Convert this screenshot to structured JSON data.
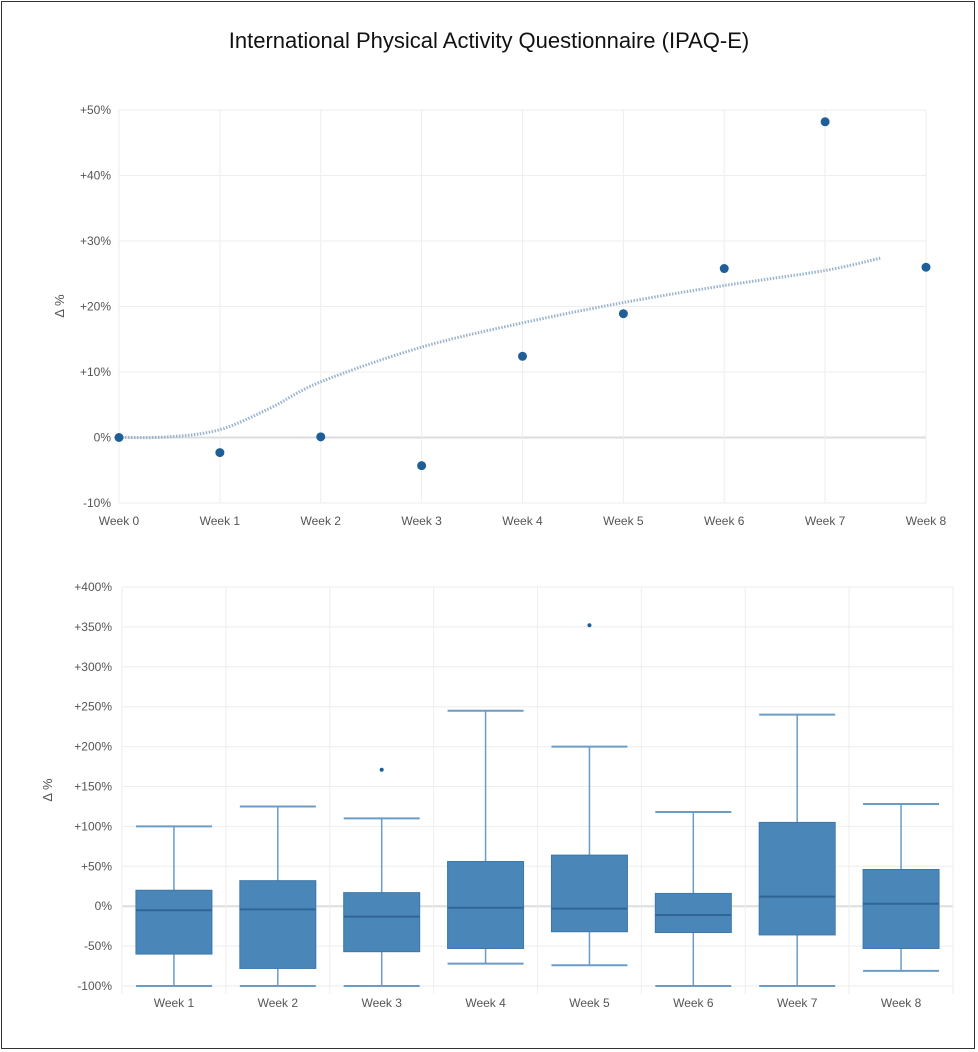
{
  "title": "International Physical Activity Questionnaire (IPAQ-E)",
  "colors": {
    "point": "#1f5f99",
    "box": "#4a86b8",
    "whisker": "#6a9cc6",
    "trend": "#9bb4cc",
    "grid": "#eeeeee"
  },
  "chart_data": [
    {
      "type": "scatter",
      "ylabel": "Δ %",
      "categories": [
        "Week 0",
        "Week 1",
        "Week 2",
        "Week 3",
        "Week 4",
        "Week 5",
        "Week 6",
        "Week 7",
        "Week 8"
      ],
      "values": [
        0,
        -2.3,
        0.1,
        -4.3,
        12.4,
        18.9,
        25.8,
        48.2,
        26.0
      ],
      "trendline": {
        "x": [
          0,
          0.5,
          1,
          1.5,
          2,
          3,
          4,
          5,
          6,
          7,
          7.55
        ],
        "y": [
          0,
          0.1,
          1.2,
          4.5,
          8.5,
          13.8,
          17.5,
          20.6,
          23.2,
          25.5,
          27.4
        ],
        "style": "dotted"
      },
      "yticks": [
        "+50%",
        "+40%",
        "+30%",
        "+20%",
        "+10%",
        "0%",
        "-10%"
      ],
      "ytick_values": [
        50,
        40,
        30,
        20,
        10,
        0,
        -10
      ],
      "ylim": [
        -10,
        50
      ],
      "grid": true
    },
    {
      "type": "box",
      "ylabel": "Δ %",
      "categories": [
        "Week 1",
        "Week 2",
        "Week 3",
        "Week 4",
        "Week 5",
        "Week 6",
        "Week 7",
        "Week 8"
      ],
      "boxes": [
        {
          "min": -100,
          "q1": -60,
          "median": -5,
          "q3": 20,
          "max": 100,
          "outliers": []
        },
        {
          "min": -100,
          "q1": -78,
          "median": -4,
          "q3": 32,
          "max": 125,
          "outliers": []
        },
        {
          "min": -100,
          "q1": -57,
          "median": -13,
          "q3": 17,
          "max": 110,
          "outliers": [
            171
          ]
        },
        {
          "min": -72,
          "q1": -53,
          "median": -2,
          "q3": 56,
          "max": 245,
          "outliers": []
        },
        {
          "min": -74,
          "q1": -32,
          "median": -3,
          "q3": 64,
          "max": 200,
          "outliers": [
            352
          ]
        },
        {
          "min": -100,
          "q1": -33,
          "median": -11,
          "q3": 16,
          "max": 118,
          "outliers": []
        },
        {
          "min": -100,
          "q1": -36,
          "median": 12,
          "q3": 105,
          "max": 240,
          "outliers": []
        },
        {
          "min": -81,
          "q1": -53,
          "median": 3,
          "q3": 46,
          "max": 128,
          "outliers": []
        }
      ],
      "yticks": [
        "+400%",
        "+350%",
        "+300%",
        "+250%",
        "+200%",
        "+150%",
        "+100%",
        "+50%",
        "0%",
        "-50%",
        "-100%"
      ],
      "ytick_values": [
        400,
        350,
        300,
        250,
        200,
        150,
        100,
        50,
        0,
        -50,
        -100
      ],
      "ylim": [
        -100,
        400
      ],
      "grid": true
    }
  ]
}
